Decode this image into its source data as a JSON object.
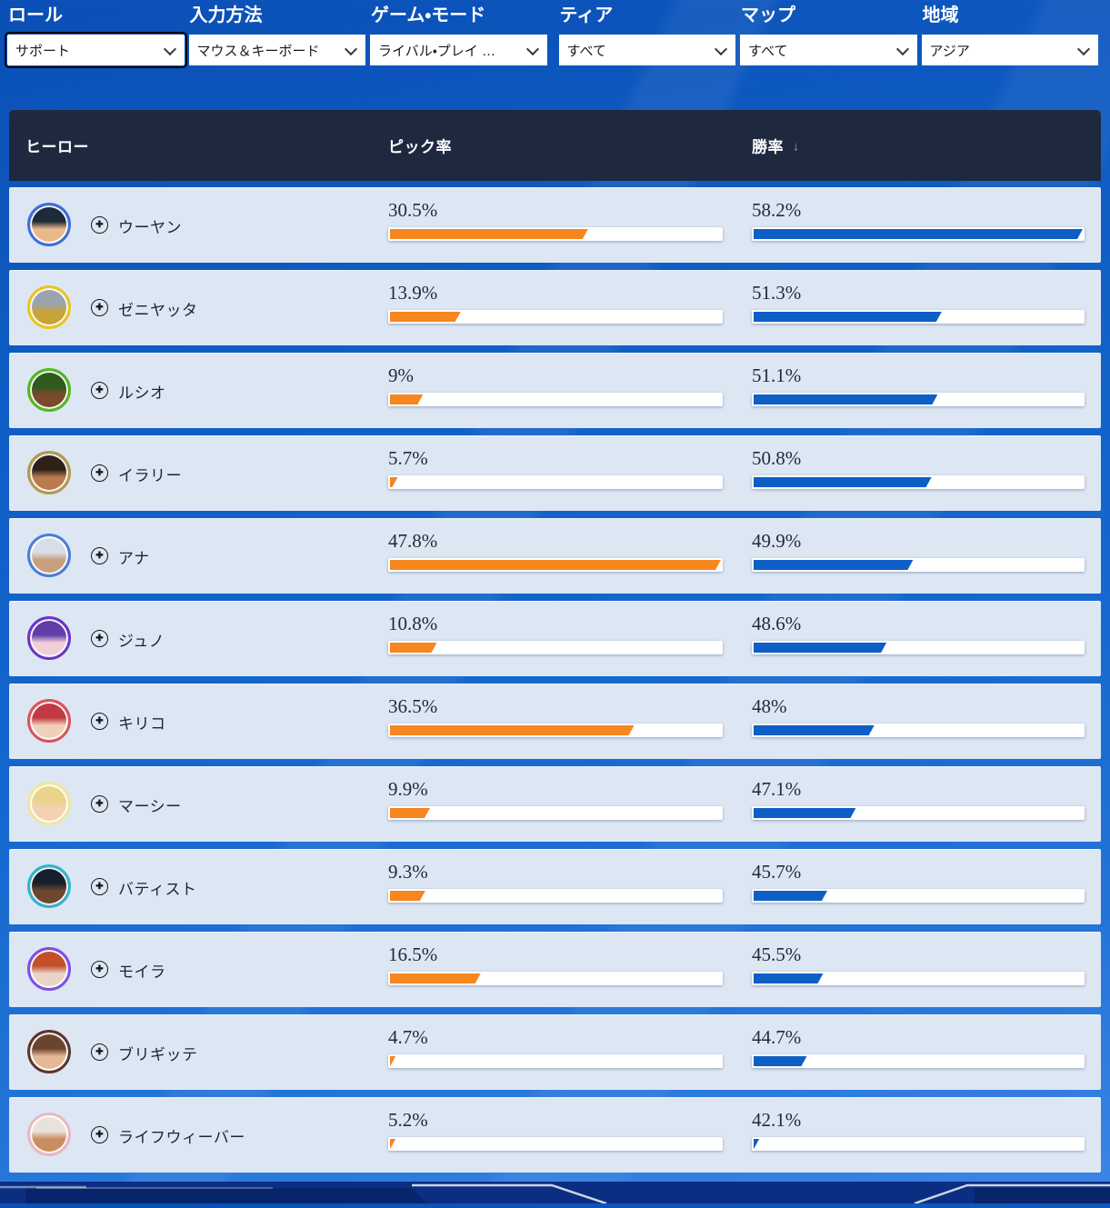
{
  "filters": [
    {
      "label": "ロール",
      "value": "サポート",
      "focused": true
    },
    {
      "label": "入力方法",
      "value": "マウス＆キーボード",
      "focused": false
    },
    {
      "label": "ゲーム・モード",
      "value": "ライバル・プレイ …",
      "focused": false
    },
    {
      "label": "ティア",
      "value": "すべて",
      "focused": false
    },
    {
      "label": "マップ",
      "value": "すべて",
      "focused": false
    },
    {
      "label": "地域",
      "value": "アジア",
      "focused": false
    }
  ],
  "table": {
    "header": {
      "hero": "ヒーロー",
      "pick": "ピック率",
      "win": "勝率",
      "sort_icon": "↓"
    },
    "plus_icon": "✚"
  },
  "colors": {
    "pick_bar": "#F6861E",
    "win_bar": "#0D5FC6",
    "header_bg": "#1E2940",
    "row_bg": "#DDE7F4",
    "page_blue": "#1162C8",
    "footer_navy": "#0A2E82"
  },
  "heroes": [
    {
      "name": "ウーヤン",
      "pick": 30.5,
      "pick_label": "30.5%",
      "win": 58.2,
      "win_label": "58.2%",
      "ring": "#3E6DE0",
      "hair": "#1D2B3A",
      "skin": "#E8B98D"
    },
    {
      "name": "ゼニヤッタ",
      "pick": 13.9,
      "pick_label": "13.9%",
      "win": 51.3,
      "win_label": "51.3%",
      "ring": "#E9C51F",
      "hair": "#9AA4AD",
      "skin": "#C8A23A"
    },
    {
      "name": "ルシオ",
      "pick": 9,
      "pick_label": "9%",
      "win": 51.1,
      "win_label": "51.1%",
      "ring": "#54B81E",
      "hair": "#2E5A1E",
      "skin": "#7A4A2B"
    },
    {
      "name": "イラリー",
      "pick": 5.7,
      "pick_label": "5.7%",
      "win": 50.8,
      "win_label": "50.8%",
      "ring": "#B29A4F",
      "hair": "#2E2118",
      "skin": "#B97A4E"
    },
    {
      "name": "アナ",
      "pick": 47.8,
      "pick_label": "47.8%",
      "win": 49.9,
      "win_label": "49.9%",
      "ring": "#4A7FD6",
      "hair": "#D9DDE6",
      "skin": "#C7A07E"
    },
    {
      "name": "ジュノ",
      "pick": 10.8,
      "pick_label": "10.8%",
      "win": 48.6,
      "win_label": "48.6%",
      "ring": "#6A35C9",
      "hair": "#5E3FA8",
      "skin": "#F0CFD8"
    },
    {
      "name": "キリコ",
      "pick": 36.5,
      "pick_label": "36.5%",
      "win": 48,
      "win_label": "48%",
      "ring": "#D8545E",
      "hair": "#C13A43",
      "skin": "#F0D0B8"
    },
    {
      "name": "マーシー",
      "pick": 9.9,
      "pick_label": "9.9%",
      "win": 47.1,
      "win_label": "47.1%",
      "ring": "#EFE79A",
      "hair": "#E8D48A",
      "skin": "#F3D2B3"
    },
    {
      "name": "バティスト",
      "pick": 9.3,
      "pick_label": "9.3%",
      "win": 45.7,
      "win_label": "45.7%",
      "ring": "#2FB6D0",
      "hair": "#17202A",
      "skin": "#6E4630"
    },
    {
      "name": "モイラ",
      "pick": 16.5,
      "pick_label": "16.5%",
      "win": 45.5,
      "win_label": "45.5%",
      "ring": "#7E4FE8",
      "hair": "#C4502A",
      "skin": "#E8D5C8"
    },
    {
      "name": "ブリギッテ",
      "pick": 4.7,
      "pick_label": "4.7%",
      "win": 44.7,
      "win_label": "44.7%",
      "ring": "#5C352C",
      "hair": "#6B4430",
      "skin": "#E5B896"
    },
    {
      "name": "ライフウィーバー",
      "pick": 5.2,
      "pick_label": "5.2%",
      "win": 42.1,
      "win_label": "42.1%",
      "ring": "#E9B7C5",
      "hair": "#E8E3DA",
      "skin": "#C98E5F"
    }
  ]
}
